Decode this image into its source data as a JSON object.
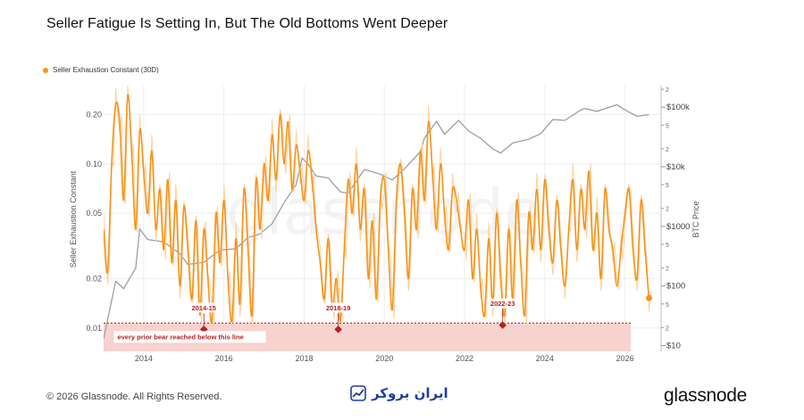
{
  "title": "Seller Fatigue Is Setting In, But The Old Bottoms Went Deeper",
  "legend_label": "Seller Exhaustion Constant (30D)",
  "footer": {
    "copyright": "© 2026 Glassnode. All Rights Reserved.",
    "partner_logo_text": "ایران بروکر",
    "brand": "glassnode"
  },
  "watermark": "glassnode",
  "colors": {
    "series": "#F7931A",
    "series_light": "#FBD3A1",
    "price": "#9AA0A6",
    "zone_fill": "#F7D2CE",
    "threshold": "#C0392B",
    "annotation": "#B22222"
  },
  "chart_data": {
    "type": "line",
    "title": "Seller Fatigue Is Setting In, But The Old Bottoms Went Deeper",
    "xlabel": "",
    "ylabel": "Seller Exhaustion Constant",
    "y2label": "BTC Price",
    "y_scale": "log",
    "y2_scale": "log",
    "ylim": [
      0.0072,
      0.3
    ],
    "y2lim": [
      8,
      230000
    ],
    "xlim": [
      2013.0,
      2026.9
    ],
    "x_ticks": [
      "2014",
      "2016",
      "2018",
      "2020",
      "2022",
      "2024",
      "2026"
    ],
    "y_ticks": [
      "0.01",
      "0.02",
      "0.05",
      "0.10",
      "0.20"
    ],
    "y2_ticks": [
      "$10",
      "2",
      "5",
      "$100",
      "2",
      "5",
      "$1000",
      "2",
      "5",
      "$10k",
      "2",
      "5",
      "$100k",
      "2"
    ],
    "grid": true,
    "legend": "top-left",
    "threshold": 0.0107,
    "threshold_note": "every prior bear reached below this line",
    "series": [
      {
        "name": "Seller Exhaustion Constant (30D)",
        "axis": "left",
        "x": [
          2013.0,
          2013.1,
          2013.2,
          2013.3,
          2013.4,
          2013.5,
          2013.6,
          2013.7,
          2013.8,
          2013.9,
          2014.0,
          2014.1,
          2014.2,
          2014.3,
          2014.4,
          2014.5,
          2014.6,
          2014.7,
          2014.8,
          2014.9,
          2015.0,
          2015.1,
          2015.2,
          2015.3,
          2015.4,
          2015.5,
          2015.6,
          2015.7,
          2015.8,
          2015.9,
          2016.0,
          2016.1,
          2016.2,
          2016.3,
          2016.4,
          2016.5,
          2016.6,
          2016.7,
          2016.8,
          2016.9,
          2017.0,
          2017.1,
          2017.2,
          2017.3,
          2017.4,
          2017.5,
          2017.6,
          2017.7,
          2017.8,
          2017.9,
          2018.0,
          2018.1,
          2018.2,
          2018.3,
          2018.4,
          2018.5,
          2018.6,
          2018.7,
          2018.8,
          2018.9,
          2019.0,
          2019.1,
          2019.2,
          2019.3,
          2019.4,
          2019.5,
          2019.6,
          2019.7,
          2019.8,
          2019.9,
          2020.0,
          2020.1,
          2020.2,
          2020.3,
          2020.4,
          2020.5,
          2020.6,
          2020.7,
          2020.8,
          2020.9,
          2021.0,
          2021.1,
          2021.2,
          2021.3,
          2021.4,
          2021.5,
          2021.6,
          2021.7,
          2021.8,
          2021.9,
          2022.0,
          2022.1,
          2022.2,
          2022.3,
          2022.4,
          2022.5,
          2022.6,
          2022.7,
          2022.8,
          2022.9,
          2023.0,
          2023.1,
          2023.2,
          2023.3,
          2023.4,
          2023.5,
          2023.6,
          2023.7,
          2023.8,
          2023.9,
          2024.0,
          2024.1,
          2024.2,
          2024.3,
          2024.4,
          2024.5,
          2024.6,
          2024.7,
          2024.8,
          2024.9,
          2025.0,
          2025.1,
          2025.2,
          2025.3,
          2025.4,
          2025.5,
          2025.6,
          2025.7,
          2025.8,
          2025.9,
          2026.0,
          2026.1,
          2026.2,
          2026.3,
          2026.4,
          2026.5,
          2026.6
        ],
        "values": [
          0.04,
          0.022,
          0.1,
          0.23,
          0.18,
          0.06,
          0.26,
          0.12,
          0.04,
          0.16,
          0.09,
          0.05,
          0.12,
          0.04,
          0.07,
          0.03,
          0.08,
          0.025,
          0.06,
          0.018,
          0.055,
          0.03,
          0.015,
          0.045,
          0.012,
          0.04,
          0.02,
          0.011,
          0.05,
          0.025,
          0.06,
          0.02,
          0.011,
          0.035,
          0.014,
          0.07,
          0.03,
          0.012,
          0.08,
          0.04,
          0.1,
          0.06,
          0.15,
          0.08,
          0.2,
          0.1,
          0.18,
          0.07,
          0.13,
          0.09,
          0.06,
          0.12,
          0.08,
          0.04,
          0.025,
          0.015,
          0.035,
          0.013,
          0.02,
          0.011,
          0.03,
          0.08,
          0.05,
          0.1,
          0.04,
          0.07,
          0.02,
          0.045,
          0.015,
          0.06,
          0.08,
          0.03,
          0.013,
          0.06,
          0.1,
          0.05,
          0.02,
          0.07,
          0.04,
          0.12,
          0.06,
          0.18,
          0.09,
          0.04,
          0.1,
          0.05,
          0.03,
          0.07,
          0.06,
          0.04,
          0.03,
          0.06,
          0.02,
          0.04,
          0.018,
          0.012,
          0.035,
          0.014,
          0.05,
          0.02,
          0.012,
          0.04,
          0.015,
          0.06,
          0.025,
          0.012,
          0.05,
          0.03,
          0.07,
          0.03,
          0.08,
          0.04,
          0.025,
          0.06,
          0.03,
          0.018,
          0.04,
          0.08,
          0.03,
          0.07,
          0.04,
          0.09,
          0.03,
          0.05,
          0.02,
          0.07,
          0.04,
          0.03,
          0.018,
          0.03,
          0.05,
          0.07,
          0.03,
          0.02,
          0.06,
          0.03,
          0.015
        ]
      },
      {
        "name": "BTC Price",
        "axis": "right",
        "x": [
          2013.0,
          2013.3,
          2013.5,
          2013.8,
          2013.9,
          2014.1,
          2014.5,
          2014.9,
          2015.1,
          2015.5,
          2015.9,
          2016.3,
          2016.6,
          2016.9,
          2017.2,
          2017.5,
          2017.8,
          2017.95,
          2018.1,
          2018.3,
          2018.6,
          2018.9,
          2019.1,
          2019.5,
          2019.9,
          2020.2,
          2020.5,
          2020.9,
          2021.0,
          2021.3,
          2021.5,
          2021.85,
          2022.1,
          2022.4,
          2022.7,
          2022.9,
          2023.2,
          2023.6,
          2023.9,
          2024.2,
          2024.5,
          2024.9,
          2025.0,
          2025.3,
          2025.8,
          2026.0,
          2026.3,
          2026.6
        ],
        "values": [
          13,
          120,
          90,
          200,
          900,
          600,
          550,
          350,
          230,
          250,
          400,
          420,
          650,
          750,
          1100,
          2500,
          5000,
          14000,
          11000,
          7000,
          6500,
          3800,
          3600,
          9000,
          7500,
          6000,
          9200,
          18000,
          30000,
          58000,
          35000,
          60000,
          40000,
          30000,
          20000,
          17000,
          25000,
          29000,
          36000,
          62000,
          60000,
          90000,
          95000,
          85000,
          110000,
          90000,
          70000,
          75000
        ]
      }
    ],
    "annotations": [
      {
        "label": "2014-15",
        "x": 2015.5,
        "y": 0.0098
      },
      {
        "label": "2018-19",
        "x": 2018.85,
        "y": 0.0098
      },
      {
        "label": "2022-23",
        "x": 2022.95,
        "y": 0.0104
      }
    ],
    "end_marker": {
      "x": 2026.6,
      "y": 0.0152
    }
  }
}
